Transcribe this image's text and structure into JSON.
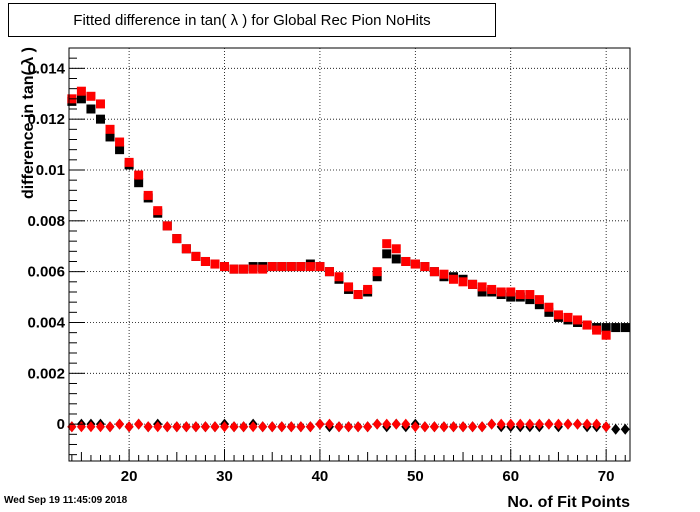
{
  "title": "Fitted difference in tan( λ ) for Global Rec Pion NoHits",
  "timestamp": "Wed Sep 19 11:45:09 2018",
  "chart_data": {
    "type": "scatter",
    "title": "Fitted difference in tan( λ ) for Global Rec Pion NoHits",
    "xlabel": "No. of Fit Points",
    "ylabel": "difference in tan( λ )",
    "xlim": [
      13.7,
      72.5
    ],
    "ylim": [
      -0.00145,
      0.0148
    ],
    "grid": true,
    "x_ticks": [
      20,
      30,
      40,
      50,
      60,
      70
    ],
    "y_ticks": [
      0,
      0.002,
      0.004,
      0.006,
      0.008,
      0.01,
      0.012,
      0.014
    ],
    "y_tick_labels": [
      "0",
      "0.002",
      "0.004",
      "0.006",
      "0.008",
      "0.01",
      "0.012",
      "0.014"
    ],
    "series": [
      {
        "marker": "square",
        "color": "#000000",
        "x": [
          14,
          15,
          16,
          17,
          18,
          19,
          20,
          21,
          22,
          23,
          24,
          25,
          26,
          27,
          28,
          29,
          30,
          31,
          32,
          33,
          34,
          35,
          36,
          37,
          38,
          39,
          40,
          41,
          42,
          43,
          44,
          45,
          46,
          47,
          48,
          49,
          50,
          51,
          52,
          53,
          54,
          55,
          56,
          57,
          58,
          59,
          60,
          61,
          62,
          63,
          64,
          65,
          66,
          67,
          68,
          69,
          70,
          71,
          72
        ],
        "y": [
          0.0127,
          0.0128,
          0.0124,
          0.012,
          0.0113,
          0.0108,
          0.0102,
          0.0095,
          0.0089,
          0.0083,
          0.0078,
          0.0073,
          0.0069,
          0.0066,
          0.0064,
          0.0063,
          0.0062,
          0.0061,
          0.0061,
          0.0062,
          0.0062,
          0.0062,
          0.0062,
          0.0062,
          0.0062,
          0.0063,
          0.0062,
          0.006,
          0.0057,
          0.0053,
          0.0051,
          0.0052,
          0.0058,
          0.0067,
          0.0065,
          0.0064,
          0.0063,
          0.0062,
          0.006,
          0.0058,
          0.0058,
          0.0057,
          0.0055,
          0.0052,
          0.0052,
          0.0051,
          0.005,
          0.005,
          0.0049,
          0.0047,
          0.0044,
          0.0042,
          0.0041,
          0.004,
          0.0039,
          0.0038,
          0.0038,
          0.0038,
          0.0038
        ]
      },
      {
        "marker": "square",
        "color": "#ff0000",
        "x": [
          14,
          15,
          16,
          17,
          18,
          19,
          20,
          21,
          22,
          23,
          24,
          25,
          26,
          27,
          28,
          29,
          30,
          31,
          32,
          33,
          34,
          35,
          36,
          37,
          38,
          39,
          40,
          41,
          42,
          43,
          44,
          45,
          46,
          47,
          48,
          49,
          50,
          51,
          52,
          53,
          54,
          55,
          56,
          57,
          58,
          59,
          60,
          61,
          62,
          63,
          64,
          65,
          66,
          67,
          68,
          69,
          70
        ],
        "y": [
          0.0128,
          0.0131,
          0.0129,
          0.0126,
          0.0116,
          0.0111,
          0.0103,
          0.0098,
          0.009,
          0.0084,
          0.0078,
          0.0073,
          0.0069,
          0.0066,
          0.0064,
          0.0063,
          0.0062,
          0.0061,
          0.0061,
          0.0061,
          0.0061,
          0.0062,
          0.0062,
          0.0062,
          0.0062,
          0.0062,
          0.0062,
          0.006,
          0.0058,
          0.0054,
          0.0051,
          0.0053,
          0.006,
          0.0071,
          0.0069,
          0.0064,
          0.0063,
          0.0062,
          0.006,
          0.0059,
          0.0057,
          0.0056,
          0.0055,
          0.0054,
          0.0053,
          0.0052,
          0.0052,
          0.0051,
          0.0051,
          0.0049,
          0.0046,
          0.0043,
          0.0042,
          0.0041,
          0.0039,
          0.0037,
          0.0035
        ]
      },
      {
        "marker": "diamond",
        "color": "#000000",
        "x": [
          14,
          15,
          16,
          17,
          18,
          19,
          20,
          21,
          22,
          23,
          24,
          25,
          26,
          27,
          28,
          29,
          30,
          31,
          32,
          33,
          34,
          35,
          36,
          37,
          38,
          39,
          40,
          41,
          42,
          43,
          44,
          45,
          46,
          47,
          48,
          49,
          50,
          51,
          52,
          53,
          54,
          55,
          56,
          57,
          58,
          59,
          60,
          61,
          62,
          63,
          64,
          65,
          66,
          67,
          68,
          69,
          70,
          71,
          72
        ],
        "y": [
          -0.0001,
          0.0,
          0.0,
          0.0,
          -0.0001,
          0.0,
          -0.0001,
          0.0,
          -0.0001,
          0.0,
          -0.0001,
          -0.0001,
          -0.0001,
          -0.0001,
          -0.0001,
          -0.0001,
          0.0,
          -0.0001,
          -0.0001,
          0.0,
          -0.0001,
          -0.0001,
          -0.0001,
          -0.0001,
          -0.0001,
          -0.0001,
          0.0,
          -0.0001,
          -0.0001,
          -0.0001,
          -0.0001,
          -0.0001,
          0.0,
          -0.0001,
          0.0,
          -0.0001,
          0.0,
          -0.0001,
          -0.0001,
          -0.0001,
          -0.0001,
          -0.0001,
          -0.0001,
          -0.0001,
          0.0,
          -0.0001,
          -0.0001,
          -0.0001,
          -0.0001,
          -0.0001,
          0.0,
          -0.0001,
          0.0,
          0.0,
          -0.0001,
          -0.0001,
          -0.0001,
          -0.0002,
          -0.0002
        ]
      },
      {
        "marker": "diamond",
        "color": "#ff0000",
        "x": [
          14,
          15,
          16,
          17,
          18,
          19,
          20,
          21,
          22,
          23,
          24,
          25,
          26,
          27,
          28,
          29,
          30,
          31,
          32,
          33,
          34,
          35,
          36,
          37,
          38,
          39,
          40,
          41,
          42,
          43,
          44,
          45,
          46,
          47,
          48,
          49,
          50,
          51,
          52,
          53,
          54,
          55,
          56,
          57,
          58,
          59,
          60,
          61,
          62,
          63,
          64,
          65,
          66,
          67,
          68,
          69,
          70
        ],
        "y": [
          -0.0001,
          -0.0001,
          -0.0001,
          -0.0001,
          -0.0001,
          0.0,
          -0.0001,
          0.0,
          -0.0001,
          -0.0001,
          -0.0001,
          -0.0001,
          -0.0001,
          -0.0001,
          -0.0001,
          -0.0001,
          -0.0001,
          -0.0001,
          -0.0001,
          -0.0001,
          -0.0001,
          -0.0001,
          -0.0001,
          -0.0001,
          -0.0001,
          -0.0001,
          0.0,
          0.0,
          -0.0001,
          -0.0001,
          -0.0001,
          -0.0001,
          0.0,
          0.0,
          0.0,
          0.0,
          -0.0001,
          -0.0001,
          -0.0001,
          -0.0001,
          -0.0001,
          -0.0001,
          -0.0001,
          -0.0001,
          0.0,
          0.0,
          0.0,
          0.0,
          0.0,
          0.0,
          0.0,
          0.0,
          0.0,
          0.0,
          0.0,
          0.0,
          -0.0001
        ]
      }
    ]
  }
}
